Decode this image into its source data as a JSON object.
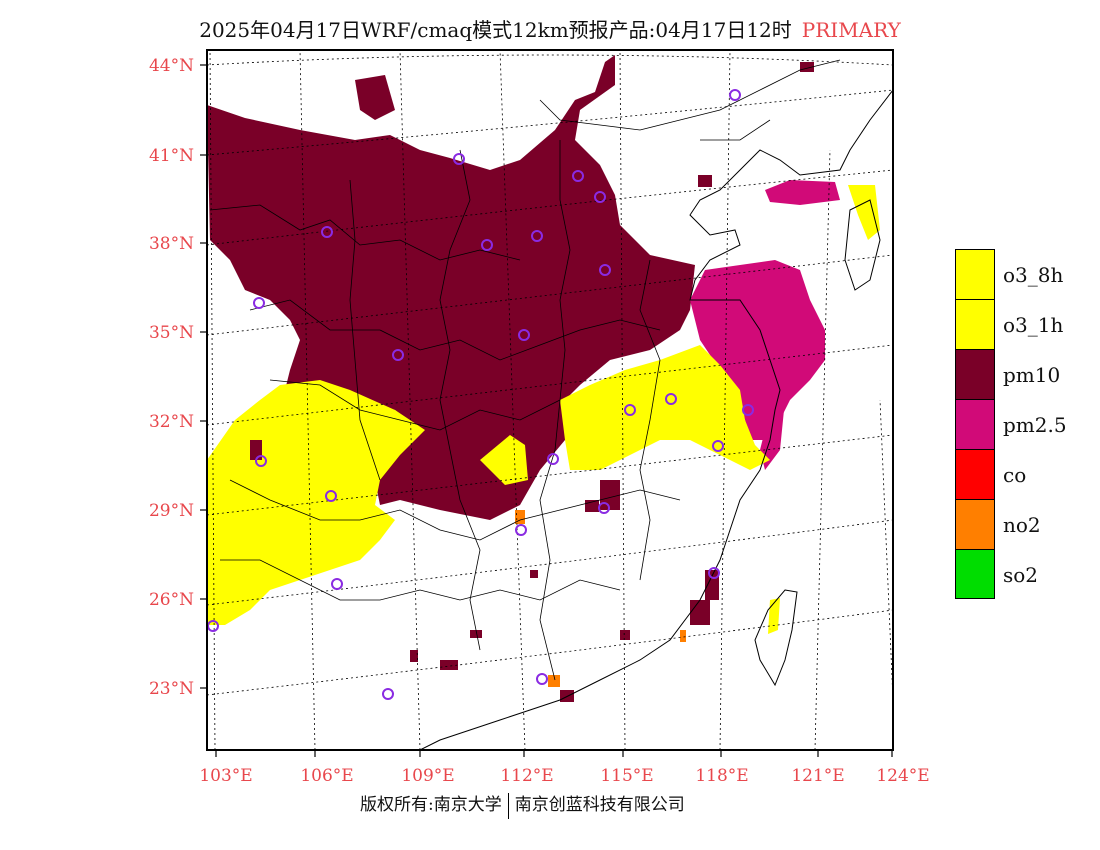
{
  "title": {
    "main": "2025年04月17日WRF/cmaq模式12km预报产品:04月17日12时",
    "tag": "PRIMARY"
  },
  "axes": {
    "lat_labels": [
      "44°N",
      "41°N",
      "38°N",
      "35°N",
      "32°N",
      "29°N",
      "26°N",
      "23°N"
    ],
    "lon_labels": [
      "103°E",
      "106°E",
      "109°E",
      "112°E",
      "115°E",
      "118°E",
      "121°E",
      "124°E"
    ],
    "label_color": "#e8474c"
  },
  "legend": [
    {
      "label": "o3_8h",
      "color": "#ffff00"
    },
    {
      "label": "o3_1h",
      "color": "#ffff00"
    },
    {
      "label": "pm10",
      "color": "#7a0028"
    },
    {
      "label": "pm2.5",
      "color": "#d10a78"
    },
    {
      "label": "co",
      "color": "#ff0000"
    },
    {
      "label": "no2",
      "color": "#ff7f00"
    },
    {
      "label": "so2",
      "color": "#00dd00"
    }
  ],
  "footer": {
    "left": "版权所有:南京大学",
    "right": "南京创蓝科技有限公司"
  }
}
